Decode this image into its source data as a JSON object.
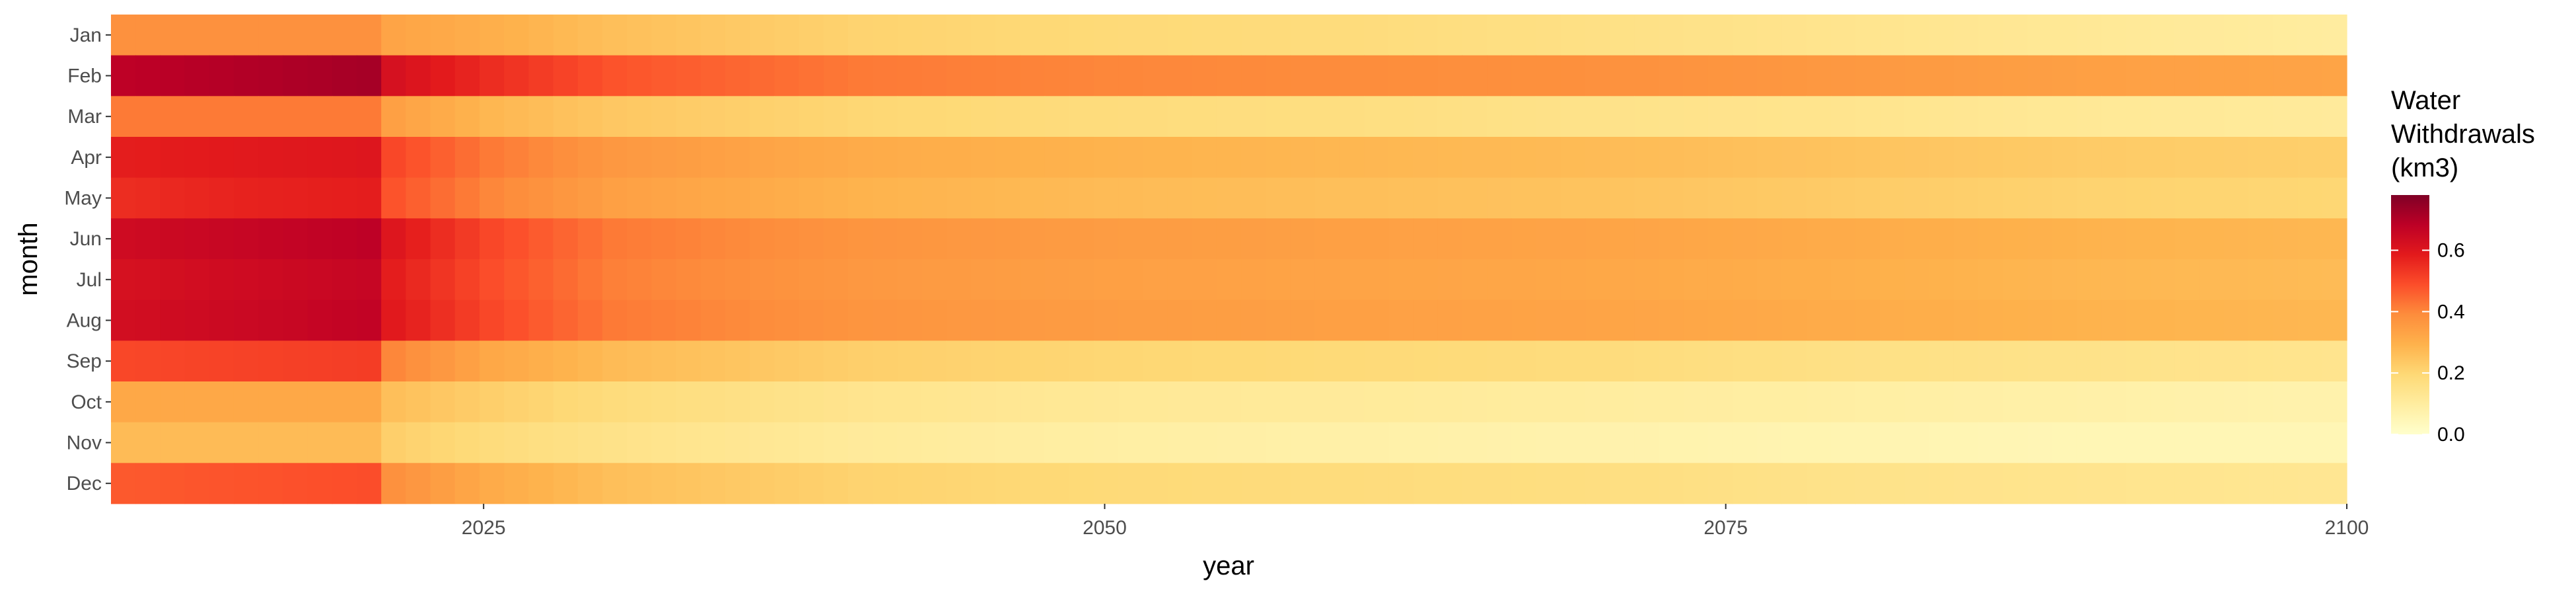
{
  "chart_data": {
    "type": "heatmap",
    "xlabel": "year",
    "ylabel": "month",
    "xlim": [
      2010,
      2100
    ],
    "x_ticks": [
      2025,
      2050,
      2075,
      2100
    ],
    "x_tick_labels": [
      "2025",
      "2050",
      "2075",
      "2100"
    ],
    "months": [
      "Jan",
      "Feb",
      "Mar",
      "Apr",
      "May",
      "Jun",
      "Jul",
      "Aug",
      "Sep",
      "Oct",
      "Nov",
      "Dec"
    ],
    "year_knots": [
      2010,
      2015,
      2020,
      2021,
      2025,
      2030,
      2040,
      2050,
      2060,
      2070,
      2080,
      2090,
      2100
    ],
    "values_by_month": [
      [
        0.38,
        0.38,
        0.38,
        0.33,
        0.3,
        0.26,
        0.21,
        0.19,
        0.18,
        0.16,
        0.14,
        0.12,
        0.1
      ],
      [
        0.68,
        0.7,
        0.72,
        0.62,
        0.55,
        0.48,
        0.42,
        0.4,
        0.39,
        0.38,
        0.36,
        0.34,
        0.33
      ],
      [
        0.42,
        0.42,
        0.42,
        0.34,
        0.28,
        0.24,
        0.2,
        0.18,
        0.17,
        0.15,
        0.14,
        0.12,
        0.11
      ],
      [
        0.58,
        0.59,
        0.6,
        0.5,
        0.42,
        0.36,
        0.31,
        0.29,
        0.28,
        0.27,
        0.25,
        0.23,
        0.22
      ],
      [
        0.55,
        0.57,
        0.58,
        0.48,
        0.4,
        0.34,
        0.29,
        0.27,
        0.26,
        0.25,
        0.23,
        0.21,
        0.2
      ],
      [
        0.64,
        0.66,
        0.68,
        0.6,
        0.5,
        0.42,
        0.37,
        0.35,
        0.34,
        0.33,
        0.31,
        0.29,
        0.28
      ],
      [
        0.62,
        0.64,
        0.66,
        0.58,
        0.49,
        0.41,
        0.36,
        0.34,
        0.33,
        0.32,
        0.3,
        0.28,
        0.27
      ],
      [
        0.63,
        0.65,
        0.67,
        0.59,
        0.5,
        0.42,
        0.37,
        0.35,
        0.34,
        0.33,
        0.31,
        0.29,
        0.28
      ],
      [
        0.5,
        0.51,
        0.52,
        0.4,
        0.32,
        0.27,
        0.22,
        0.2,
        0.19,
        0.18,
        0.16,
        0.15,
        0.14
      ],
      [
        0.32,
        0.32,
        0.32,
        0.26,
        0.22,
        0.18,
        0.14,
        0.12,
        0.11,
        0.1,
        0.09,
        0.08,
        0.07
      ],
      [
        0.27,
        0.27,
        0.27,
        0.22,
        0.18,
        0.15,
        0.11,
        0.09,
        0.08,
        0.07,
        0.06,
        0.05,
        0.05
      ],
      [
        0.47,
        0.48,
        0.49,
        0.38,
        0.31,
        0.26,
        0.21,
        0.19,
        0.18,
        0.17,
        0.15,
        0.14,
        0.13
      ]
    ],
    "legend": {
      "title_lines": [
        "Water",
        "Withdrawals",
        "(km3)"
      ],
      "ticks": [
        0.0,
        0.2,
        0.4,
        0.6
      ],
      "tick_labels": [
        "0.0",
        "0.2",
        "0.4",
        "0.6"
      ],
      "range": [
        0,
        0.78
      ],
      "placement": "right"
    },
    "colors": [
      "#ffffcc",
      "#ffeda0",
      "#fed976",
      "#feb24c",
      "#fd8d3c",
      "#fc4e2a",
      "#e31a1c",
      "#bd0026",
      "#800026"
    ],
    "grid": false
  }
}
